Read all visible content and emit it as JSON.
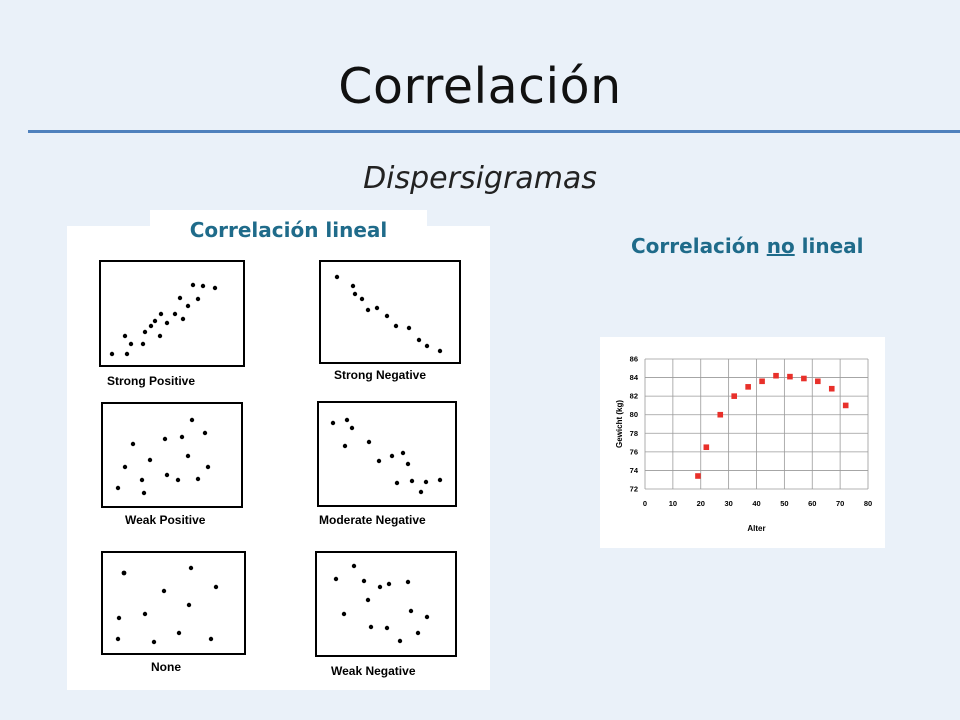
{
  "slide": {
    "title": "Correlación",
    "subtitle": "Dispersigramas",
    "tab_lineal": "Correlación lineal",
    "heading_nonlineal": {
      "before": "Correlación ",
      "underlined": "no",
      "after": " lineal"
    }
  },
  "scatter_panels": [
    {
      "label": "Strong Positive"
    },
    {
      "label": "Strong Negative"
    },
    {
      "label": "Weak Positive"
    },
    {
      "label": "Moderate Negative"
    },
    {
      "label": "None"
    },
    {
      "label": "Weak Negative"
    }
  ],
  "chart_data": {
    "type": "scatter",
    "xlabel": "Alter",
    "ylabel": "Gewicht (kg)",
    "xlim": [
      0,
      80
    ],
    "ylim": [
      72,
      86
    ],
    "xticks": [
      0,
      10,
      20,
      30,
      40,
      50,
      60,
      70,
      80
    ],
    "yticks": [
      72,
      74,
      76,
      78,
      80,
      82,
      84,
      86
    ],
    "grid": true,
    "marker_color": "#e8302a",
    "series": [
      {
        "x": [
          19,
          22,
          27,
          32,
          37,
          42,
          47,
          52,
          57,
          62,
          67,
          72
        ],
        "y": [
          73.4,
          76.5,
          80.0,
          82.0,
          83.0,
          83.6,
          84.2,
          84.1,
          83.9,
          83.6,
          82.8,
          81.0
        ]
      }
    ]
  }
}
